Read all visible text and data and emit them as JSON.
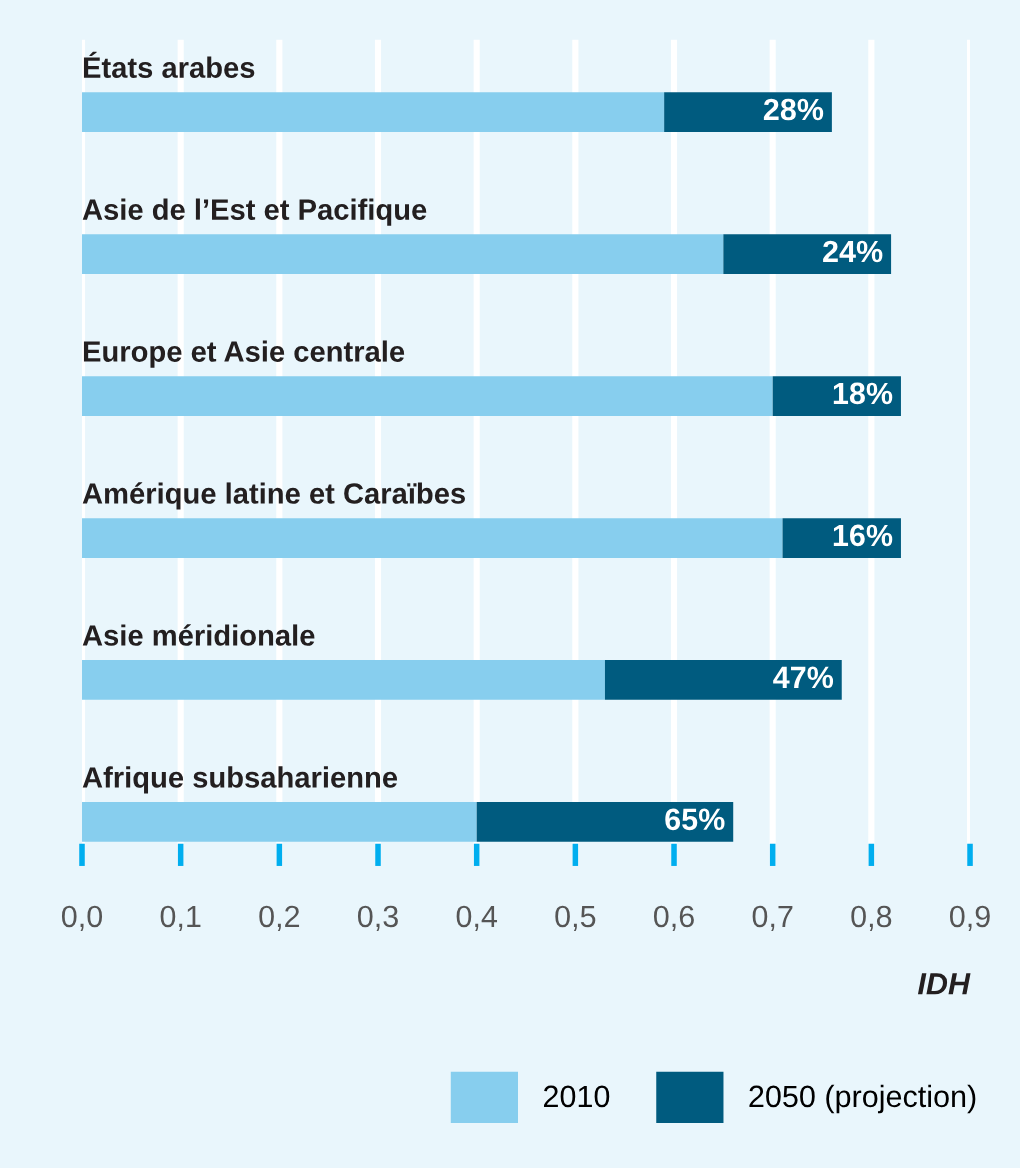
{
  "chart_data": {
    "type": "bar",
    "orientation": "horizontal",
    "stacked": true,
    "categories": [
      "États arabes",
      "Asie de l’Est et Pacifique",
      "Europe et Asie centrale",
      "Amérique latine et Caraïbes",
      "Asie méridionale",
      "Afrique subsaharienne"
    ],
    "series": [
      {
        "name": "2010",
        "color": "#87ceee",
        "values": [
          0.59,
          0.65,
          0.7,
          0.71,
          0.53,
          0.4
        ]
      },
      {
        "name": "2050 (projection)",
        "color": "#005b7f",
        "values": [
          0.17,
          0.17,
          0.13,
          0.12,
          0.24,
          0.26
        ]
      }
    ],
    "annotations": [
      {
        "text": "28%",
        "x": 0.76,
        "y": "États arabes"
      },
      {
        "text": "24%",
        "x": 0.82,
        "y": "Asie de l’Est et Pacifique"
      },
      {
        "text": "18%",
        "x": 0.83,
        "y": "Europe et Asie centrale"
      },
      {
        "text": "16%",
        "x": 0.83,
        "y": "Amérique latine et Caraïbes"
      },
      {
        "text": "47%",
        "x": 0.77,
        "y": "Asie méridionale"
      },
      {
        "text": "65%",
        "x": 0.66,
        "y": "Afrique subsaharienne"
      }
    ],
    "xlabel": "IDH",
    "xlim": [
      0,
      0.9
    ],
    "xticks": [
      {
        "value": 0,
        "label": "0,0"
      },
      {
        "value": 0.1,
        "label": "0,1"
      },
      {
        "value": 0.2,
        "label": "0,2"
      },
      {
        "value": 0.3,
        "label": "0,3"
      },
      {
        "value": 0.4,
        "label": "0,4"
      },
      {
        "value": 0.5,
        "label": "0,5"
      },
      {
        "value": 0.6,
        "label": "0,6"
      },
      {
        "value": 0.7,
        "label": "0,7"
      },
      {
        "value": 0.8,
        "label": "0,8"
      },
      {
        "value": 0.9,
        "label": "0,9"
      }
    ],
    "grid": "x",
    "legend": "bottom right"
  }
}
